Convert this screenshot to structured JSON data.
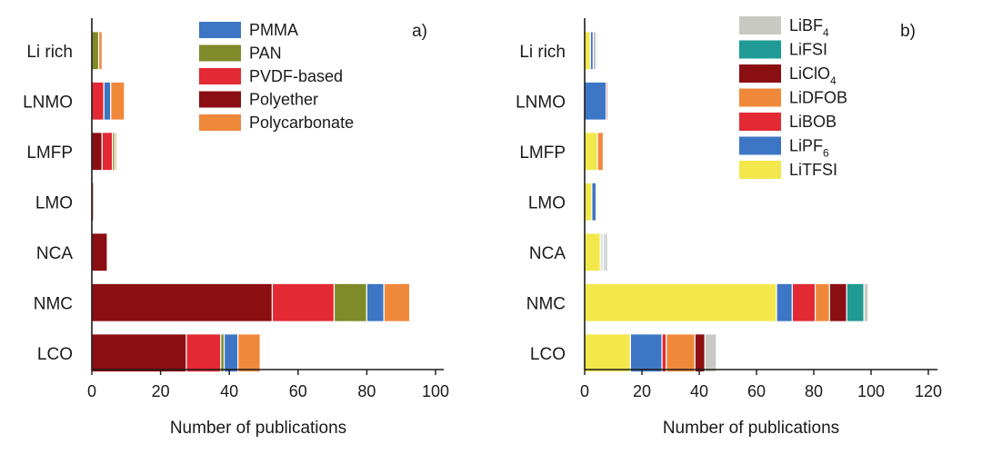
{
  "chart_data": [
    {
      "type": "bar",
      "orientation": "horizontal",
      "stacked": true,
      "panel_label": "a)",
      "categories": [
        "Li rich",
        "LNMO",
        "LMFP",
        "LMO",
        "NCA",
        "NMC",
        "LCO"
      ],
      "series": [
        {
          "name": "Polyether",
          "color": "#8b0e12",
          "values": [
            0,
            0,
            3,
            0.5,
            4.5,
            52.5,
            27.5
          ]
        },
        {
          "name": "PVDF-based",
          "color": "#e32934",
          "values": [
            0,
            3.5,
            3,
            0,
            0,
            18,
            10
          ]
        },
        {
          "name": "PAN",
          "color": "#7f8a29",
          "values": [
            2,
            0,
            0.7,
            0,
            0,
            9.5,
            1
          ]
        },
        {
          "name": "PMMA",
          "color": "#3d76c4",
          "values": [
            0,
            2,
            0,
            0,
            0,
            5,
            4
          ]
        },
        {
          "name": "Polycarbonate",
          "color": "#f0883a",
          "values": [
            1,
            4,
            0.5,
            0,
            0,
            7.5,
            6.5
          ]
        }
      ],
      "legend_order": [
        "PMMA",
        "PAN",
        "PVDF-based",
        "Polyether",
        "Polycarbonate"
      ],
      "xlabel": "Number of publications",
      "xlim": [
        0,
        100
      ],
      "xticks": [
        0,
        20,
        40,
        60,
        80,
        100
      ],
      "legend_position": "top-right"
    },
    {
      "type": "bar",
      "orientation": "horizontal",
      "stacked": true,
      "panel_label": "b)",
      "categories": [
        "Li rich",
        "LNMO",
        "LMFP",
        "LMO",
        "NCA",
        "NMC",
        "LCO"
      ],
      "series": [
        {
          "name": "LiTFSI",
          "color": "#f2e84b",
          "values": [
            2,
            0,
            4.5,
            2.5,
            5.5,
            67,
            16
          ]
        },
        {
          "name": "LiPF6",
          "color": "#3d76c4",
          "values": [
            1,
            7.5,
            0,
            1.5,
            0.5,
            5.5,
            11
          ]
        },
        {
          "name": "LiBOB",
          "color": "#e32934",
          "values": [
            0,
            0,
            0,
            0,
            0,
            8,
            1.5
          ]
        },
        {
          "name": "LiDFOB",
          "color": "#f0883a",
          "values": [
            0,
            0,
            2,
            0,
            0.5,
            5,
            10
          ]
        },
        {
          "name": "LiClO4",
          "color": "#8b0e12",
          "values": [
            0.5,
            0.5,
            0,
            0,
            0,
            6,
            3.5
          ]
        },
        {
          "name": "LiFSI",
          "color": "#1f9a94",
          "values": [
            0.5,
            0,
            0,
            0,
            0.5,
            6,
            0
          ]
        },
        {
          "name": "LiBF4",
          "color": "#c9c9c4",
          "values": [
            0.5,
            0,
            0,
            0,
            1,
            1.5,
            4
          ]
        }
      ],
      "legend_order": [
        "LiBF4",
        "LiFSI",
        "LiClO4",
        "LiDFOB",
        "LiBOB",
        "LiPF6",
        "LiTFSI"
      ],
      "legend_subscripts": {
        "LiBF4": [
          "LiBF",
          "4"
        ],
        "LiClO4": [
          "LiClO",
          "4"
        ],
        "LiPF6": [
          "LiPF",
          "6"
        ]
      },
      "xlabel": "Number of publications",
      "xlim": [
        0,
        120
      ],
      "xticks": [
        0,
        20,
        40,
        60,
        80,
        100,
        120
      ],
      "legend_position": "top-right"
    }
  ]
}
